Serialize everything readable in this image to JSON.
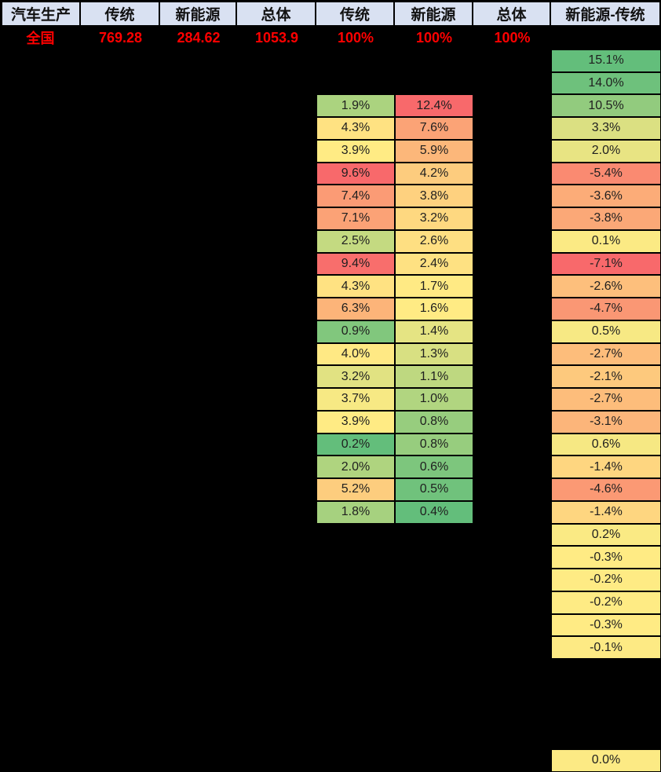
{
  "colors": {
    "background": "#000000",
    "header_bg": "#d9e1f2",
    "header_text": "#111111",
    "national_text": "#ff0000",
    "cell_text": "#1f1f1f",
    "cell_border": "#000000",
    "scale_red": "#f8696b",
    "scale_yellow": "#ffeb84",
    "scale_green": "#63be7b"
  },
  "chart_data": {
    "type": "heatmap",
    "title": "汽车生产",
    "header_row": [
      "汽车生产",
      "传统",
      "新能源",
      "总体",
      "传统",
      "新能源",
      "总体",
      "新能源-传统"
    ],
    "national_row": {
      "label": "全国",
      "values": [
        "769.28",
        "284.62",
        "1053.9",
        "100%",
        "100%",
        "100%"
      ]
    },
    "unit_note": "cell values are percent shares; last column is 新能源% minus 传统%",
    "series": [
      {
        "name": "传统",
        "data_name": "share-trad",
        "grid_col": 5,
        "row_offset": 2,
        "scale": "trad",
        "values": [
          1.9,
          4.3,
          3.9,
          9.6,
          7.4,
          7.1,
          2.5,
          9.4,
          4.3,
          6.3,
          0.9,
          4.0,
          3.2,
          3.7,
          3.9,
          0.2,
          2.0,
          5.2,
          1.8
        ]
      },
      {
        "name": "新能源",
        "data_name": "share-nev",
        "grid_col": 6,
        "row_offset": 2,
        "scale": "nev",
        "values": [
          12.4,
          7.6,
          5.9,
          4.2,
          3.8,
          3.2,
          2.6,
          2.4,
          1.7,
          1.6,
          1.4,
          1.3,
          1.1,
          1.0,
          0.8,
          0.8,
          0.6,
          0.5,
          0.4
        ]
      },
      {
        "name": "新能源-传统",
        "data_name": "diff-nev-trad",
        "grid_col": 8,
        "row_offset": 0,
        "scale": "diff",
        "values": [
          15.1,
          14.0,
          10.5,
          3.3,
          2.0,
          -5.4,
          -3.6,
          -3.8,
          0.1,
          -7.1,
          -2.6,
          -4.7,
          0.5,
          -2.7,
          -2.1,
          -2.7,
          -3.1,
          0.6,
          -1.4,
          -4.6,
          -1.4,
          0.2,
          -0.3,
          -0.2,
          -0.2,
          -0.3,
          -0.1,
          null,
          null,
          null,
          null,
          0.0
        ]
      }
    ],
    "scales": {
      "trad": {
        "min": 0.2,
        "mid": 3.9,
        "max": 9.6,
        "low_color": "#63be7b",
        "mid_color": "#ffeb84",
        "high_color": "#f8696b"
      },
      "nev": {
        "min": 0.4,
        "mid": 1.6,
        "max": 12.4,
        "low_color": "#63be7b",
        "mid_color": "#ffeb84",
        "high_color": "#f8696b"
      },
      "diff": {
        "min": -7.1,
        "mid": -0.3,
        "max": 15.1,
        "low_color": "#f8696b",
        "mid_color": "#ffeb84",
        "high_color": "#63be7b"
      }
    },
    "value_suffix": "%"
  }
}
